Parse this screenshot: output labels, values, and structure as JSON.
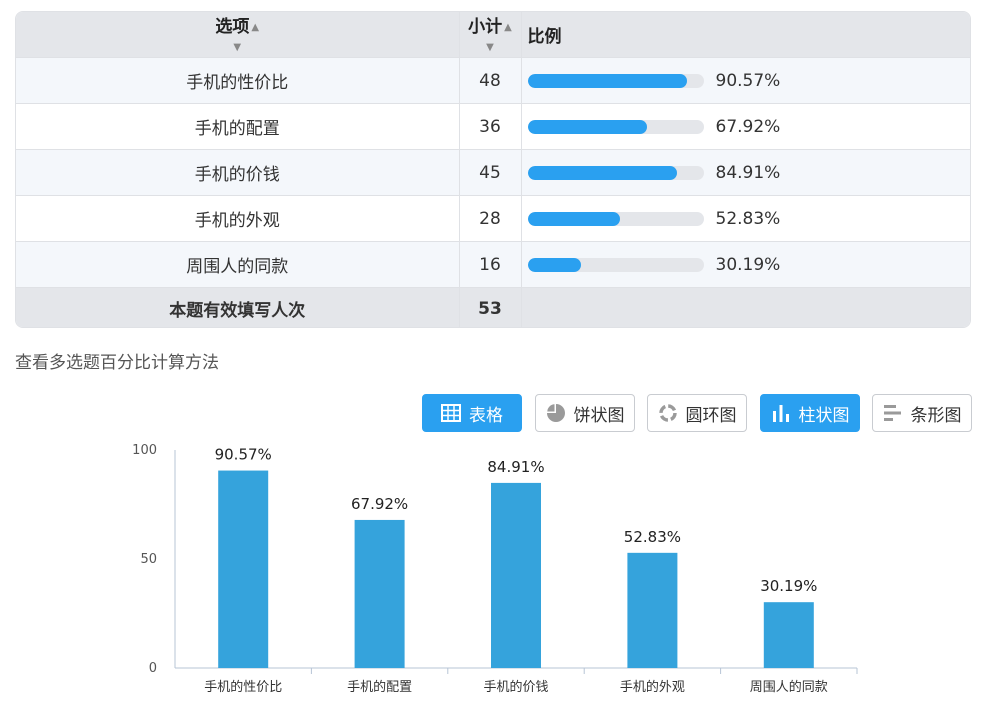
{
  "table": {
    "headers": {
      "option": "选项",
      "count": "小计",
      "ratio": "比例"
    },
    "rows": [
      {
        "option": "手机的性价比",
        "count": "48",
        "pct": "90.57%",
        "fraction": 0.9057
      },
      {
        "option": "手机的配置",
        "count": "36",
        "pct": "67.92%",
        "fraction": 0.6792
      },
      {
        "option": "手机的价钱",
        "count": "45",
        "pct": "84.91%",
        "fraction": 0.8491
      },
      {
        "option": "手机的外观",
        "count": "28",
        "pct": "52.83%",
        "fraction": 0.5283
      },
      {
        "option": "周围人的同款",
        "count": "16",
        "pct": "30.19%",
        "fraction": 0.3019
      }
    ],
    "total": {
      "label": "本题有效填写人次",
      "count": "53"
    }
  },
  "method_link": "查看多选题百分比计算方法",
  "toolbar": {
    "buttons": [
      {
        "label": "表格",
        "icon": "table-icon",
        "active": true
      },
      {
        "label": "饼状图",
        "icon": "pie-icon",
        "active": false
      },
      {
        "label": "圆环图",
        "icon": "ring-icon",
        "active": false
      },
      {
        "label": "柱状图",
        "icon": "column-chart-icon",
        "active": true
      },
      {
        "label": "条形图",
        "icon": "bar-chart-icon",
        "active": false
      }
    ]
  },
  "colors": {
    "accent": "#2aa0f0",
    "bar": "#35a3dc",
    "track": "#e4e6ea"
  },
  "chart_data": {
    "type": "bar",
    "categories": [
      "手机的性价比",
      "手机的配置",
      "手机的价钱",
      "手机的外观",
      "周围人的同款"
    ],
    "values": [
      90.57,
      67.92,
      84.91,
      52.83,
      30.19
    ],
    "data_labels": [
      "90.57%",
      "67.92%",
      "84.91%",
      "52.83%",
      "30.19%"
    ],
    "ylim": [
      0,
      100
    ],
    "yticks": [
      "0",
      "50",
      "100"
    ],
    "grid": false,
    "legend": "none"
  }
}
